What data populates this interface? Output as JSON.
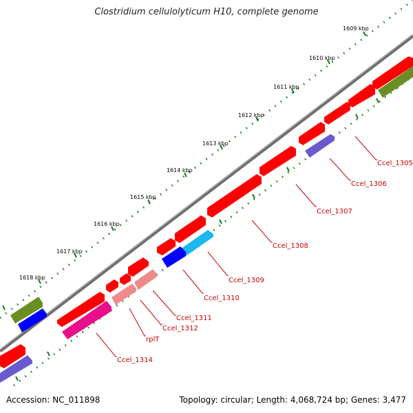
{
  "title": "Clostridium cellulolyticum H10, complete genome",
  "accession": "Accession: NC_011898",
  "summary": "Topology: circular; Length: 4,068,724 bp; Genes: 3,477",
  "tick_labels": [
    "1609 kbp",
    "1610 kbp",
    "1611 kbp",
    "1612 kbp",
    "1613 kbp",
    "1614 kbp",
    "1615 kbp",
    "1616 kbp",
    "1617 kbp",
    "1618 kbp"
  ],
  "gene_labels": [
    "Ccel_1305",
    "Ccel_1306",
    "Ccel_1307",
    "Ccel_1308",
    "Ccel_1309",
    "Ccel_1310",
    "Ccel_1311",
    "Ccel_1312",
    "rplT",
    "Ccel_1314"
  ],
  "colors": {
    "cds": "#ff0000",
    "cds_light": "#f08a8a",
    "magenta": "#e8108a",
    "blue": "#0000ff",
    "cyan": "#1ab8ee",
    "violet": "#6a5ad0",
    "olive": "#6b8e23",
    "backbone": "#7a7a7a",
    "ruler": "#1a7a1a",
    "label": "#cc0000"
  }
}
